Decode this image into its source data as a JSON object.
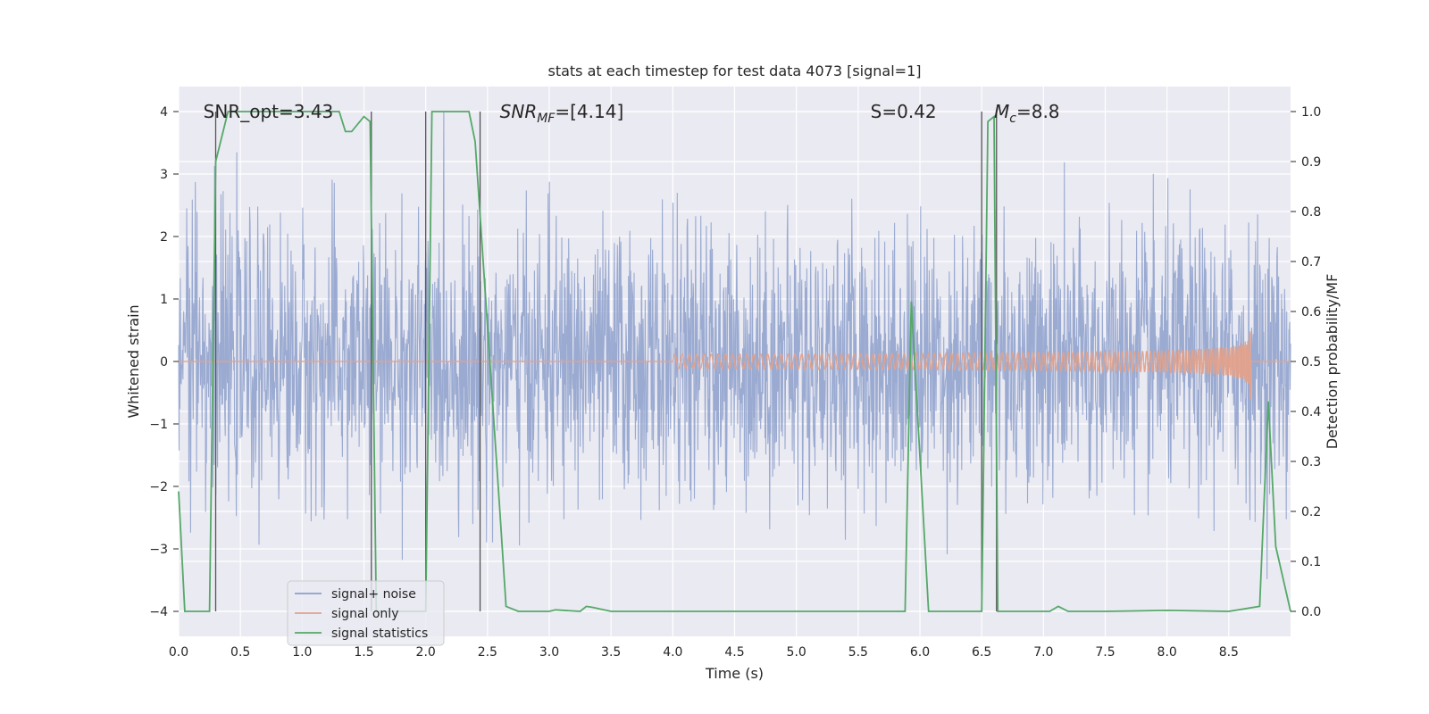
{
  "chart_data": {
    "type": "line",
    "title": "stats at each timestep for test data 4073 [signal=1]",
    "xlabel": "Time (s)",
    "ylabel_left": "Whitened strain",
    "ylabel_right": "Detection probability/MF",
    "xlim": [
      0,
      9
    ],
    "ylim_left": [
      -4.4,
      4.4
    ],
    "ylim_right": [
      -0.05,
      1.05
    ],
    "xticks": [
      "0.0",
      "0.5",
      "1.0",
      "1.5",
      "2.0",
      "2.5",
      "3.0",
      "3.5",
      "4.0",
      "4.5",
      "5.0",
      "5.5",
      "6.0",
      "6.5",
      "7.0",
      "7.5",
      "8.0",
      "8.5"
    ],
    "yticks_left": [
      "−4",
      "−3",
      "−2",
      "−1",
      "0",
      "1",
      "2",
      "3",
      "4"
    ],
    "yticks_right": [
      "0.0",
      "0.1",
      "0.2",
      "0.3",
      "0.4",
      "0.5",
      "0.6",
      "0.7",
      "0.8",
      "0.9",
      "1.0"
    ],
    "grid": true,
    "legend_position": "lower-left",
    "annotations": [
      {
        "text": "SNR_opt=3.43",
        "x": 0.2,
        "y": 4.0
      },
      {
        "text": "SNR_MF=[4.14]",
        "x": 2.6,
        "y": 4.0
      },
      {
        "text": "S=0.42",
        "x": 5.6,
        "y": 4.0
      },
      {
        "text": "M_c=8.8",
        "x": 6.6,
        "y": 4.0
      }
    ],
    "vertical_lines": [
      0.3,
      1.56,
      2.0,
      2.44,
      6.5,
      6.62
    ],
    "series": [
      {
        "name": "signal+ noise",
        "color": "#8c9fcb",
        "note": "whitened noise with gaussian spread, sigma about 1, extremes near ±4",
        "envelope": {
          "x": [
            0,
            9
          ],
          "sigma": 1.0,
          "max_abs": 4.0
        }
      },
      {
        "name": "signal only",
        "color": "#e1a18b",
        "note": "chirp growing in amplitude, ending near 8.68 s",
        "chirp": {
          "t_start": 4.0,
          "t_end": 8.68,
          "peak_amplitude": 0.65
        }
      },
      {
        "name": "signal statistics",
        "color": "#55a868",
        "axis": "right",
        "x": [
          0.0,
          0.05,
          0.25,
          0.3,
          0.4,
          1.3,
          1.35,
          1.4,
          1.5,
          1.55,
          1.6,
          1.7,
          2.0,
          2.05,
          2.35,
          2.4,
          2.6,
          2.65,
          2.75,
          3.0,
          3.05,
          3.25,
          3.3,
          3.35,
          3.5,
          4.0,
          5.5,
          5.88,
          5.93,
          6.07,
          6.5,
          6.55,
          6.6,
          6.63,
          7.05,
          7.12,
          7.2,
          7.5,
          8.0,
          8.5,
          8.75,
          8.82,
          8.88,
          9.0
        ],
        "values": [
          0.24,
          0.0,
          0.0,
          0.9,
          1.0,
          1.0,
          0.96,
          0.96,
          0.99,
          0.98,
          0.0,
          0.0,
          0.0,
          1.0,
          1.0,
          0.94,
          0.2,
          0.01,
          0.0,
          0.0,
          0.003,
          0.0,
          0.01,
          0.008,
          0.0,
          0.0,
          0.0,
          0.0,
          0.62,
          0.0,
          0.0,
          0.98,
          0.99,
          0.0,
          0.0,
          0.01,
          0.0,
          0.0,
          0.002,
          0.0,
          0.01,
          0.42,
          0.13,
          0.0
        ]
      }
    ]
  }
}
